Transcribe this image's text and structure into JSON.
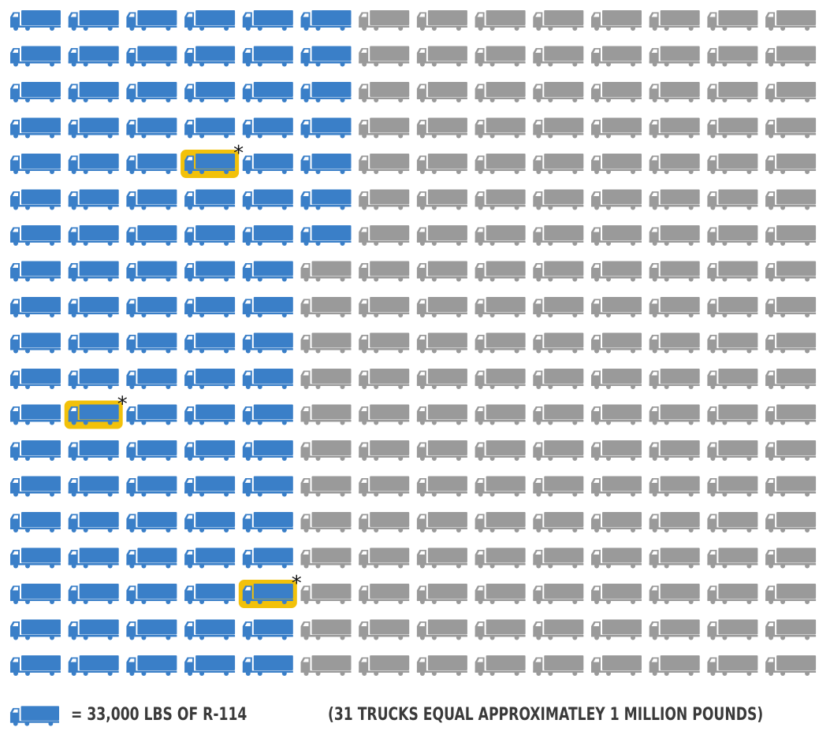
{
  "chart_data": {
    "type": "pictogram",
    "rows": 19,
    "columns": 14,
    "unit_value": 33000,
    "unit_label": "= 33,000 LBS OF R-114",
    "note": "(31 TRUCKS EQUAL APPROXIMATLEY 1 MILLION POUNDS)",
    "filled_per_column": [
      19,
      19,
      19,
      19,
      19,
      7,
      0,
      0,
      0,
      0,
      0,
      0,
      0,
      0
    ],
    "filled_total": 102,
    "total_icons": 266,
    "highlighted": [
      {
        "row": 5,
        "column": 4,
        "marker": "*"
      },
      {
        "row": 12,
        "column": 2,
        "marker": "*"
      },
      {
        "row": 17,
        "column": 5,
        "marker": "*"
      }
    ],
    "colors": {
      "filled": "#3a7fc8",
      "empty": "#9a9a9a",
      "highlight": "#f2c10a",
      "marker": "#111111"
    }
  }
}
